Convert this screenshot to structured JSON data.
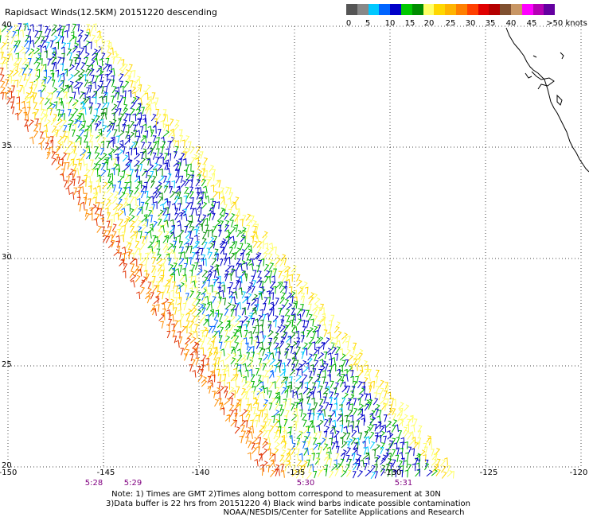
{
  "title": "Rapidsact Winds(12.5KM) 20151220 descending",
  "legend": {
    "colors": [
      "#555555",
      "#888888",
      "#00c8ff",
      "#0064ff",
      "#0000c8",
      "#00c800",
      "#008c00",
      "#ffff66",
      "#ffd700",
      "#ffb400",
      "#ff8000",
      "#ff4000",
      "#e00000",
      "#b40000",
      "#805030",
      "#c89664",
      "#ff00ff",
      "#b400b4",
      "#6400a0"
    ],
    "labels": [
      "0",
      "5",
      "10",
      "15",
      "20",
      "25",
      "30",
      "35",
      "40",
      "45",
      ">50 knots"
    ]
  },
  "map": {
    "lat_labels": [
      "40",
      "35",
      "30",
      "25",
      "20"
    ],
    "lon_labels": [
      "-150",
      "-145",
      "-140",
      "-135",
      "-130",
      "-125",
      "-120"
    ],
    "time_labels": [
      "5:28",
      "5:29",
      "5:30",
      "5:31"
    ],
    "lat_range": [
      20,
      40
    ],
    "lon_range": [
      -150,
      -120
    ],
    "grid": "dotted"
  },
  "notes": {
    "line1": "Note: 1) Times are GMT 2)Times along bottom correspond to measurement at 30N",
    "line2": "3)Data buffer is 22 hrs from 20151220 4) Black wind barbs indicate possible contamination",
    "line3": "NOAA/NESDIS/Center for Satellite Applications and Research"
  }
}
